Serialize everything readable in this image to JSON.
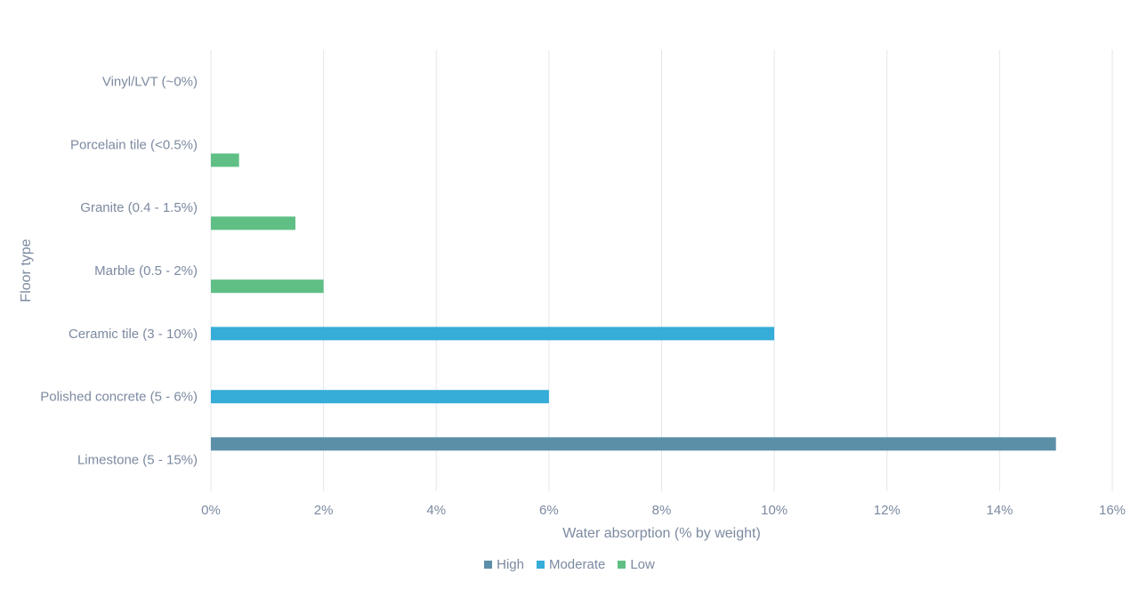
{
  "chart_data": {
    "type": "bar",
    "orientation": "horizontal",
    "title": "",
    "xlabel": "Water absorption (% by weight)",
    "ylabel": "Floor type",
    "xlim": [
      0,
      16
    ],
    "x_ticks": [
      "0%",
      "2%",
      "4%",
      "6%",
      "8%",
      "10%",
      "12%",
      "14%",
      "16%"
    ],
    "grid": "vertical",
    "legend_position": "bottom",
    "categories": [
      "Vinyl/LVT (~0%)",
      "Porcelain tile (<0.5%)",
      "Granite (0.4 - 1.5%)",
      "Marble (0.5 - 2%)",
      "Ceramic tile (3 - 10%)",
      "Polished concrete (5 - 6%)",
      "Limestone (5 - 15%)"
    ],
    "series": [
      {
        "name": "High",
        "color": "#5b8fa8",
        "values": [
          null,
          null,
          null,
          null,
          null,
          null,
          15
        ]
      },
      {
        "name": "Moderate",
        "color": "#36acd8",
        "values": [
          null,
          null,
          null,
          null,
          10,
          6,
          null
        ]
      },
      {
        "name": "Low",
        "color": "#5fbf85",
        "values": [
          0,
          0.5,
          1.5,
          2,
          null,
          null,
          null
        ]
      }
    ]
  }
}
